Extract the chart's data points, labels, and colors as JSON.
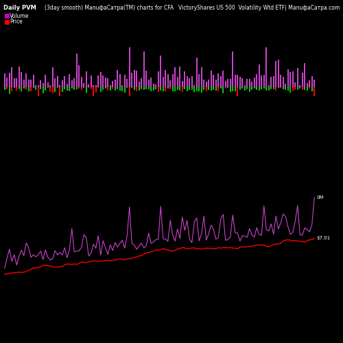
{
  "title_left": "Daily PVM",
  "title_center": "(3day smooth) ManuфаСатра(TM) charts for CFA",
  "title_right": "VictoryShares US 500  Volatility Wtd ETF| ManuфаСатра.com",
  "legend_volume_label": "Volume",
  "legend_price_label": "Price",
  "legend_volume_color": "#cc00cc",
  "legend_price_color": "#ff0000",
  "background_color": "#000000",
  "text_color": "#ffffff",
  "bar_color_up": "#00cc00",
  "bar_color_down": "#ff0000",
  "volume_bar_color": "#cc44cc",
  "price_line_color": "#ff0000",
  "measure_line_color": "#cc44cc",
  "label_0M": "0M",
  "label_price": "$7.01",
  "n_points": 130
}
